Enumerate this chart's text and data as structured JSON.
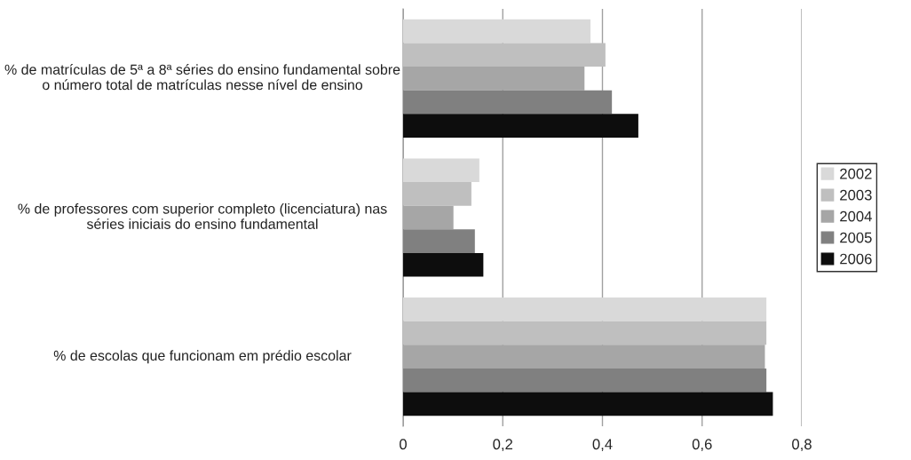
{
  "chart_data": {
    "type": "bar",
    "orientation": "horizontal",
    "categories": [
      "% de matrículas de 5ª a 8ª séries do ensino fundamental sobre o número total de matrículas nesse nível de ensino",
      "% de professores com superior completo (licenciatura) nas séries iniciais do ensino fundamental",
      "% de escolas que funcionam em prédio escolar"
    ],
    "series": [
      {
        "name": "2002",
        "color": "#d9d9d9",
        "values": [
          0.376,
          0.153,
          0.729
        ]
      },
      {
        "name": "2003",
        "color": "#bfbfbf",
        "values": [
          0.406,
          0.137,
          0.729
        ]
      },
      {
        "name": "2004",
        "color": "#a6a6a6",
        "values": [
          0.364,
          0.101,
          0.726
        ]
      },
      {
        "name": "2005",
        "color": "#808080",
        "values": [
          0.419,
          0.144,
          0.729
        ]
      },
      {
        "name": "2006",
        "color": "#0d0d0d",
        "values": [
          0.472,
          0.161,
          0.742
        ]
      }
    ],
    "xlim": [
      0,
      0.8
    ],
    "xticks": [
      {
        "value": 0,
        "label": "0"
      },
      {
        "value": 0.2,
        "label": "0,2"
      },
      {
        "value": 0.4,
        "label": "0,4"
      },
      {
        "value": 0.6,
        "label": "0,6"
      },
      {
        "value": 0.8,
        "label": "0,8"
      }
    ],
    "grid": "x",
    "legend": "right"
  }
}
